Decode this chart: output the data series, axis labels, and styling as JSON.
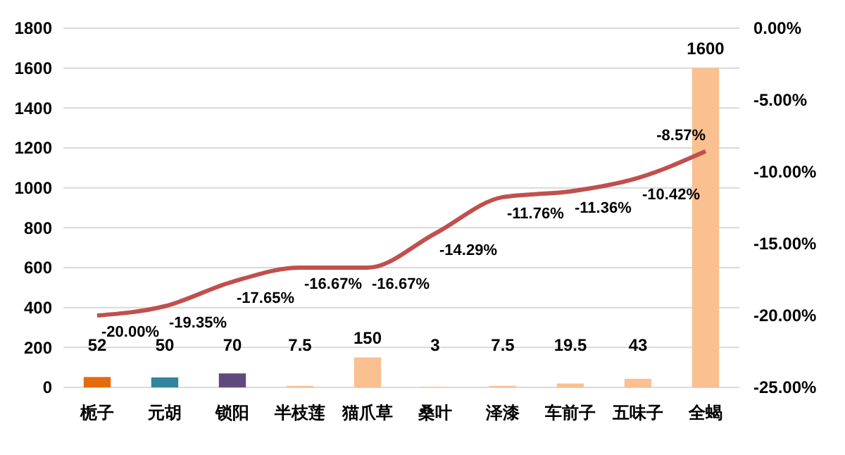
{
  "chart_data": {
    "type": "bar",
    "categories": [
      "栀子",
      "元胡",
      "锁阳",
      "半枝莲",
      "猫爪草",
      "桑叶",
      "泽漆",
      "车前子",
      "五味子",
      "全蝎"
    ],
    "series": [
      {
        "colors": [
          "#e36c09",
          "#31859c",
          "#604a7b",
          "#fac090",
          "#fac090",
          "#fac090",
          "#fac090",
          "#fac090",
          "#fac090",
          "#fac090"
        ],
        "values": [
          52,
          50,
          70,
          7.5,
          150,
          3,
          7.5,
          19.5,
          43,
          1600
        ]
      },
      {
        "type": "line",
        "axis": "y2",
        "color": "#c0504d",
        "values": [
          -20.0,
          -19.35,
          -17.65,
          -16.67,
          -16.67,
          -14.29,
          -11.76,
          -11.36,
          -10.42,
          -8.57
        ],
        "value_labels": [
          "-20.00%",
          "-19.35%",
          "-17.65%",
          "-16.67%",
          "-16.67%",
          "-14.29%",
          "-11.76%",
          "-11.36%",
          "-10.42%",
          "-8.57%"
        ]
      }
    ],
    "ylim": [
      0,
      1800
    ],
    "yticks": [
      0,
      200,
      400,
      600,
      800,
      1000,
      1200,
      1400,
      1600,
      1800
    ],
    "y2lim": [
      -25,
      0
    ],
    "y2ticks": [
      {
        "value": -25,
        "label": "-25.00%"
      },
      {
        "value": -20,
        "label": "-20.00%"
      },
      {
        "value": -15,
        "label": "-15.00%"
      },
      {
        "value": -10,
        "label": "-10.00%"
      },
      {
        "value": -5,
        "label": "-5.00%"
      },
      {
        "value": 0,
        "label": "0.00%"
      }
    ],
    "grid": "y",
    "data_labels": true,
    "marker": "none",
    "line_style": "solid"
  }
}
